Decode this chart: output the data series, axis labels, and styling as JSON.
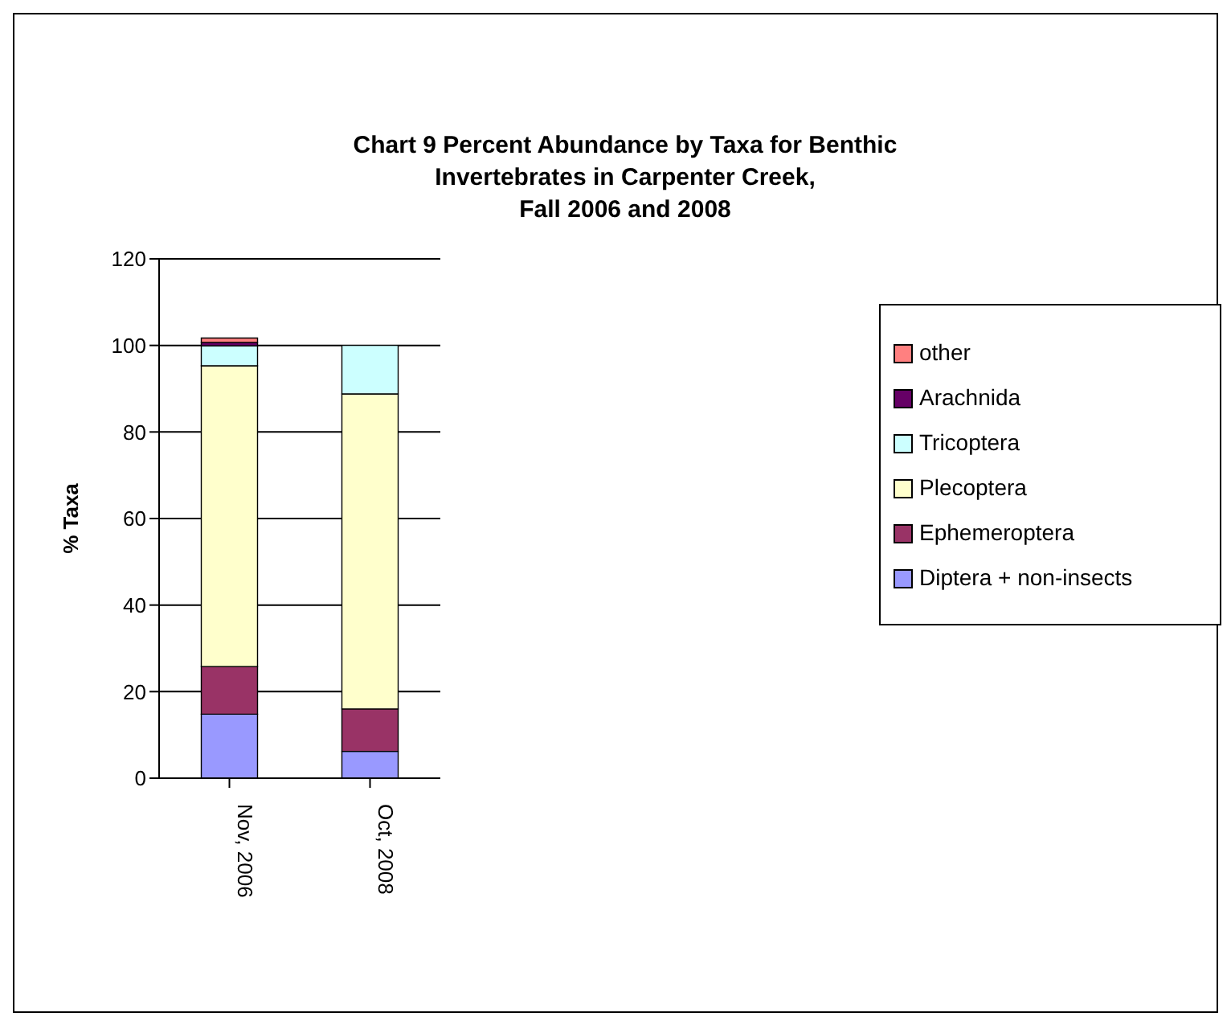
{
  "chart_data": {
    "type": "bar",
    "title": "Chart 9  Percent Abundance by Taxa for Benthic\nInvertebrates in Carpenter Creek,\nFall 2006 and 2008",
    "ylabel": "% Taxa",
    "categories": [
      "Nov, 2006",
      "Oct, 2008"
    ],
    "stacked": true,
    "series": [
      {
        "name": "Diptera + non-insects",
        "color": "#9999ff",
        "values": [
          14.8,
          6.2
        ]
      },
      {
        "name": "Ephemeroptera",
        "color": "#993366",
        "values": [
          11,
          9.8
        ]
      },
      {
        "name": "Plecoptera",
        "color": "#ffffcc",
        "values": [
          69.5,
          72.8
        ]
      },
      {
        "name": "Tricoptera",
        "color": "#ccffff",
        "values": [
          4.6,
          11.2
        ]
      },
      {
        "name": "Arachnida",
        "color": "#660066",
        "values": [
          0.8,
          0
        ]
      },
      {
        "name": "other",
        "color": "#ff8080",
        "values": [
          1,
          0
        ]
      }
    ],
    "ylim": [
      0,
      120
    ],
    "yticks": [
      0,
      20,
      40,
      60,
      80,
      100,
      120
    ],
    "grid": "y",
    "legend": "right"
  }
}
